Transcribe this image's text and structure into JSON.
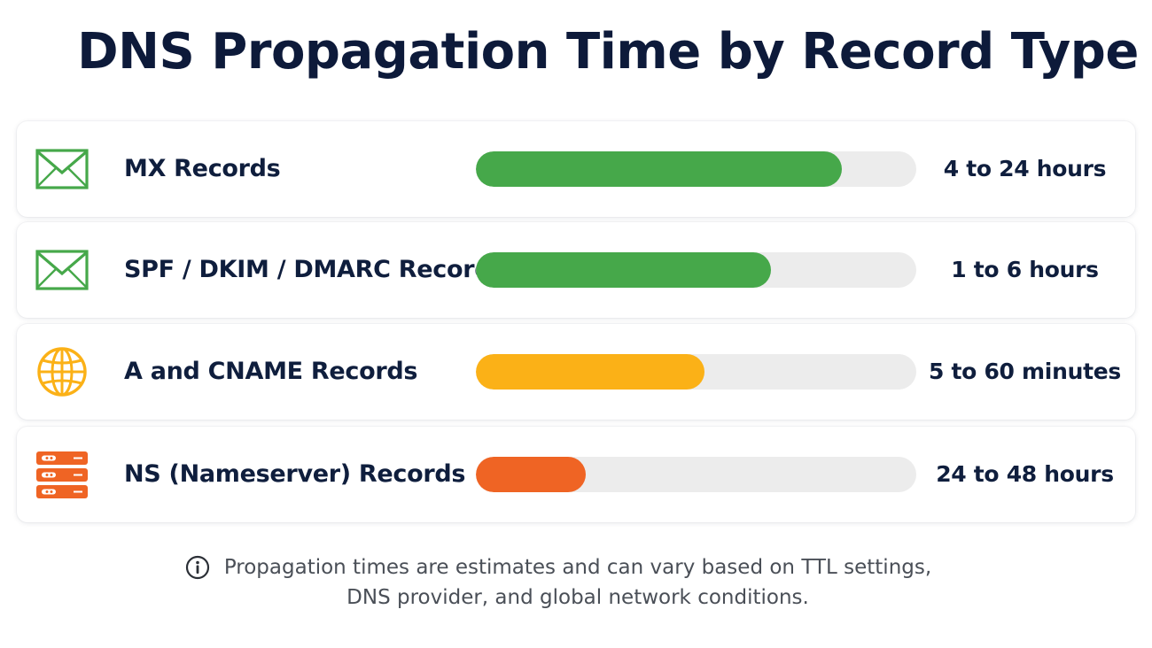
{
  "chart_data": {
    "type": "bar",
    "orientation": "horizontal",
    "title": "DNS Propagation Time by Record Type",
    "categories": [
      "MX Records",
      "SPF / DKIM / DMARC Records",
      "A and CNAME Records",
      "NS (Nameserver) Records"
    ],
    "values": [
      0.83,
      0.67,
      0.52,
      0.25
    ],
    "value_unit": "relative fill fraction",
    "value_labels": [
      "4 to 24 hours",
      "1 to 6 hours",
      "5 to 60 minutes",
      "24 to 48 hours"
    ],
    "colors": [
      "#46a84a",
      "#46a84a",
      "#fbb117",
      "#ef6424"
    ],
    "icons": [
      "envelope-icon",
      "envelope-icon",
      "globe-icon",
      "server-icon"
    ],
    "grid": false,
    "legend": "none"
  },
  "footnote": {
    "line1": "Propagation times are estimates and can vary based on TTL settings,",
    "line2": "DNS provider, and global network conditions.",
    "icon": "info-icon"
  },
  "colors": {
    "title": "#0d1a3a",
    "track": "#ececec",
    "note": "#4a4f57"
  }
}
